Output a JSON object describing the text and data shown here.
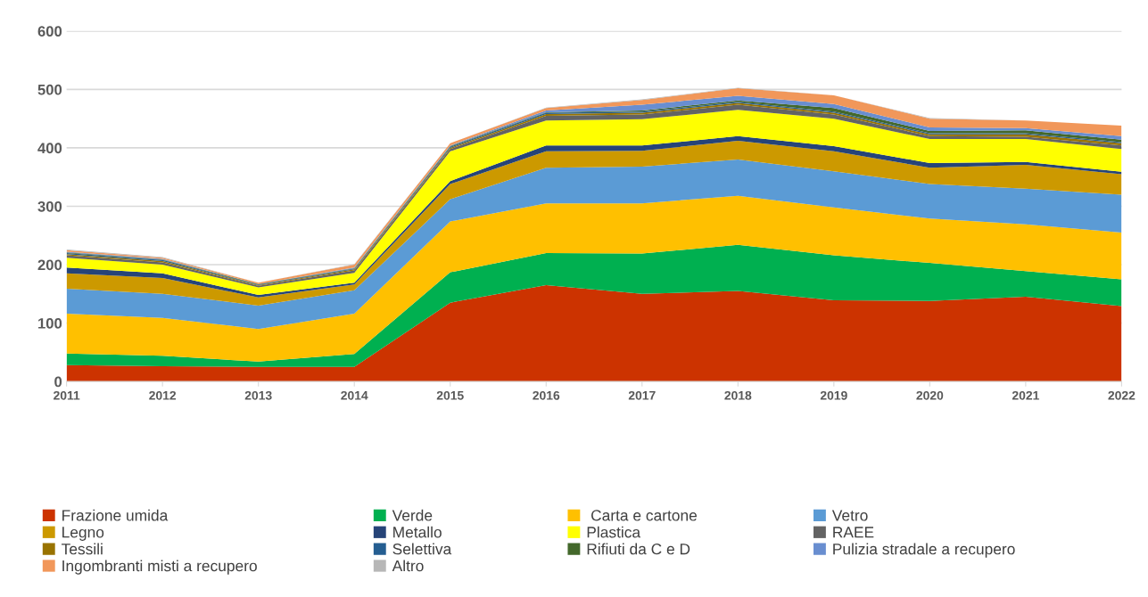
{
  "chart_data": {
    "type": "area",
    "stacked": true,
    "categories": [
      "2011",
      "2012",
      "2013",
      "2014",
      "2015",
      "2016",
      "2017",
      "2018",
      "2019",
      "2020",
      "2021",
      "2022"
    ],
    "ylim": [
      0,
      600
    ],
    "yticks": [
      0,
      100,
      200,
      300,
      400,
      500,
      600
    ],
    "grid": "y",
    "legend": "bottom",
    "series": [
      {
        "name": "Frazione umida",
        "color": "#cc3300",
        "values": [
          28,
          26,
          25,
          25,
          135,
          165,
          150,
          155,
          139,
          138,
          145,
          129
        ]
      },
      {
        "name": "Verde",
        "color": "#00b050",
        "values": [
          20,
          18,
          9,
          22,
          52,
          55,
          69,
          79,
          77,
          65,
          44,
          46
        ]
      },
      {
        "name": " Carta e cartone",
        "color": "#ffc000",
        "values": [
          68,
          65,
          56,
          69,
          87,
          85,
          86,
          84,
          82,
          76,
          80,
          80
        ]
      },
      {
        "name": "Vetro",
        "color": "#5b9bd5",
        "values": [
          43,
          41,
          40,
          40,
          38,
          61,
          63,
          62,
          62,
          59,
          61,
          65
        ]
      },
      {
        "name": "Legno",
        "color": "#cc9900",
        "values": [
          26,
          27,
          14,
          10,
          26,
          28,
          27,
          32,
          34,
          28,
          41,
          35
        ]
      },
      {
        "name": "Metallo",
        "color": "#264478",
        "values": [
          10,
          8,
          4,
          3,
          5,
          10,
          9,
          8,
          9,
          8,
          5,
          4
        ]
      },
      {
        "name": "Plastica",
        "color": "#ffff00",
        "values": [
          17,
          15,
          13,
          17,
          51,
          43,
          45,
          45,
          47,
          41,
          39,
          39
        ]
      },
      {
        "name": "RAEE",
        "color": "#636363",
        "values": [
          4,
          4,
          3,
          4,
          4,
          8,
          8,
          9,
          7,
          5,
          4,
          6
        ]
      },
      {
        "name": "Tessili",
        "color": "#997300",
        "values": [
          2,
          2,
          1,
          2,
          2,
          3,
          3,
          3,
          3,
          3,
          4,
          4
        ]
      },
      {
        "name": "Selettiva",
        "color": "#255e91",
        "values": [
          2,
          2,
          1,
          1,
          2,
          2,
          2,
          2,
          2,
          2,
          2,
          2
        ]
      },
      {
        "name": "Rifiuti da C e D",
        "color": "#43682b",
        "values": [
          1,
          1,
          1,
          1,
          1,
          1,
          2,
          2,
          6,
          4,
          5,
          4
        ]
      },
      {
        "name": "Pulizia stradale a recupero",
        "color": "#698ed0",
        "values": [
          1,
          1,
          0,
          1,
          1,
          3,
          10,
          8,
          7,
          6,
          4,
          6
        ]
      },
      {
        "name": "Ingombranti misti a recupero",
        "color": "#f1975a",
        "values": [
          3,
          2,
          2,
          5,
          4,
          4,
          8,
          13,
          15,
          15,
          13,
          18
        ]
      },
      {
        "name": "Altro",
        "color": "#b7b7b7",
        "values": [
          1,
          1,
          0,
          1,
          0,
          1,
          1,
          1,
          0,
          1,
          0,
          0
        ]
      }
    ]
  }
}
